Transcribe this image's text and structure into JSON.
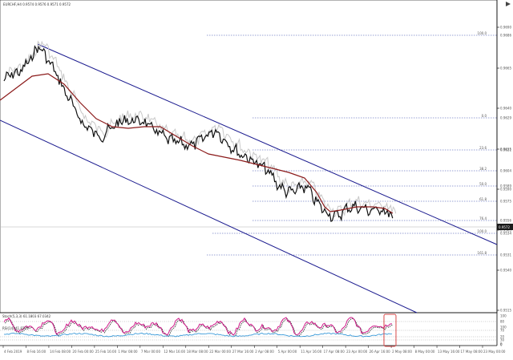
{
  "window": {
    "title": "EURCHF,H4  0.9574 0.9576 0.9571 0.9572"
  },
  "colors": {
    "background": "#ffffff",
    "price": "#111111",
    "price_ghost": "#c8c8c8",
    "moving_average": "#8b1a1a",
    "channel": "#1b1b8f",
    "fib_levels": "#3344aa",
    "stoch_main": "#d01a8a",
    "stoch_signal": "#222222",
    "rsi": "#3a9ad9",
    "highlight": "#d84a4a",
    "last_price_box": "#1a1a1a"
  },
  "icons": {
    "scroll_end": "arrow-right-icon"
  },
  "price_axis": {
    "ticks": [
      "0.9690",
      "0.9665",
      "0.9640",
      "0.9615",
      "0.9590",
      "0.9565",
      "0.9540",
      "0.9515"
    ],
    "last_price": "0.9572"
  },
  "fib_levels": [
    "100.0",
    "0.0",
    "23.6",
    "38.2",
    "50.0",
    "61.8",
    "76.4",
    "100.0",
    "161.8"
  ],
  "fib_values": [
    "0.9686",
    "0.9629",
    "0.9621",
    "0.9604",
    "0.9589",
    "0.9575",
    "0.9556",
    "0.9534",
    "0.9531"
  ],
  "stochastic": {
    "label": "Stoch(5,3,3) 61.1803 67.0342",
    "scale": [
      "100",
      "80",
      "20",
      "0"
    ]
  },
  "rsi": {
    "label": "RSI(14) 41.8201",
    "scale": [
      "100",
      "70",
      "30",
      "0"
    ]
  },
  "time_axis": [
    "4 Feb 2019",
    "8 Feb 16:00",
    "14 Feb 08:00",
    "20 Feb 00:00",
    "25 Feb 16:00",
    "1 Mar 08:00",
    "7 Mar 00:00",
    "12 Mar 16:00",
    "18 Mar 08:00",
    "22 Mar 00:00",
    "27 Mar 16:00",
    "2 Apr 08:00",
    "5 Apr 00:00",
    "11 Apr 16:00",
    "17 Apr 08:00",
    "23 Apr 00:00",
    "26 Apr 16:00",
    "2 May 08:00",
    "8 May 00:00",
    "13 May 16:00",
    "17 May 08:00",
    "23 May 00:00"
  ]
}
